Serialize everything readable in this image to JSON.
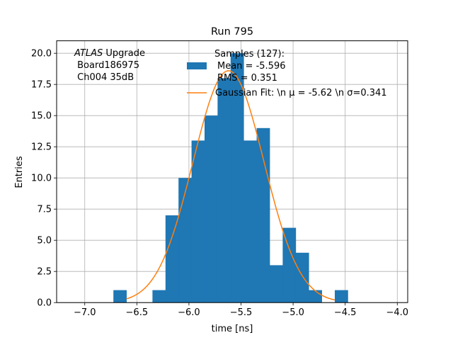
{
  "chart_data": {
    "type": "bar",
    "title": "Run 795",
    "xlabel": "time [ns]",
    "ylabel": "Entries",
    "xlim": [
      -7.27,
      -3.9
    ],
    "ylim": [
      0,
      21
    ],
    "grid": true,
    "x_ticks": [
      -7.0,
      -6.5,
      -6.0,
      -5.5,
      -5.0,
      -4.5,
      -4.0
    ],
    "x_tick_labels": [
      "−7.0",
      "−6.5",
      "−6.0",
      "−5.5",
      "−5.0",
      "−4.5",
      "−4.0"
    ],
    "y_ticks": [
      0,
      2.5,
      5,
      7.5,
      10,
      12.5,
      15,
      17.5,
      20
    ],
    "y_tick_labels": [
      "0.0",
      "2.5",
      "5.0",
      "7.5",
      "10.0",
      "12.5",
      "15.0",
      "17.5",
      "20.0"
    ],
    "annotation": {
      "italic_part": "ATLAS",
      "line1_rest": " Upgrade",
      "line2": " Board186975",
      "line3": " Ch004 35dB"
    },
    "legend": {
      "position": "upper right",
      "hist_label_lines": [
        "Samples (127):",
        "Mean = -5.596",
        "RMS = 0.351"
      ],
      "fit_label": "Gaussian Fit: \\n μ = -5.62 \\n σ=0.341"
    },
    "histogram": {
      "name": "Samples (127):",
      "color": "#1f77b4",
      "bin_edges": [
        -6.725,
        -6.6,
        -6.475,
        -6.35,
        -6.225,
        -6.1,
        -5.975,
        -5.85,
        -5.725,
        -5.6,
        -5.475,
        -5.35,
        -5.225,
        -5.1,
        -4.975,
        -4.85,
        -4.725,
        -4.6,
        -4.475
      ],
      "counts": [
        1,
        0,
        0,
        1,
        7,
        10,
        13,
        15,
        18,
        20,
        13,
        14,
        3,
        6,
        4,
        1,
        0,
        1
      ]
    },
    "fit": {
      "name": "Gaussian Fit",
      "color": "#ff7f0e",
      "mu": -5.62,
      "sigma": 0.341,
      "amplitude": 18.6,
      "x_range": [
        -6.6,
        -4.6
      ]
    }
  }
}
